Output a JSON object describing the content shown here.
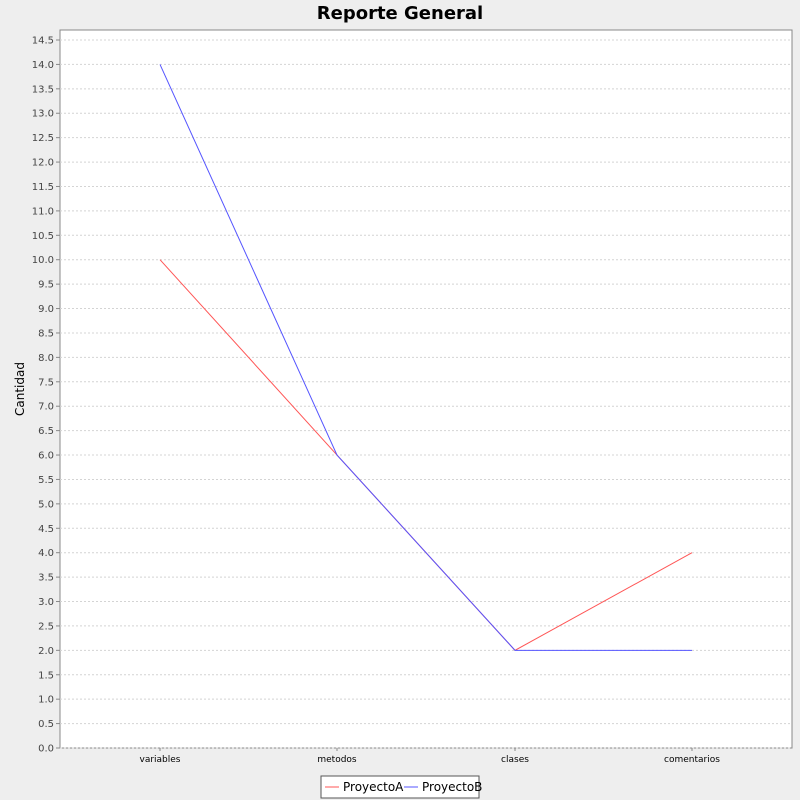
{
  "chart_data": {
    "type": "line",
    "title": "Reporte General",
    "xlabel": "",
    "ylabel": "Cantidad",
    "categories": [
      "variables",
      "metodos",
      "clases",
      "comentarios"
    ],
    "ylim": [
      0,
      14.5
    ],
    "ytick_step": 0.5,
    "grid": true,
    "legend_position": "bottom",
    "series": [
      {
        "name": "ProyectoA",
        "color": "#ff5555",
        "values": [
          10,
          6,
          2,
          4
        ]
      },
      {
        "name": "ProyectoB",
        "color": "#5555ff",
        "values": [
          14,
          6,
          2,
          2
        ]
      }
    ]
  }
}
